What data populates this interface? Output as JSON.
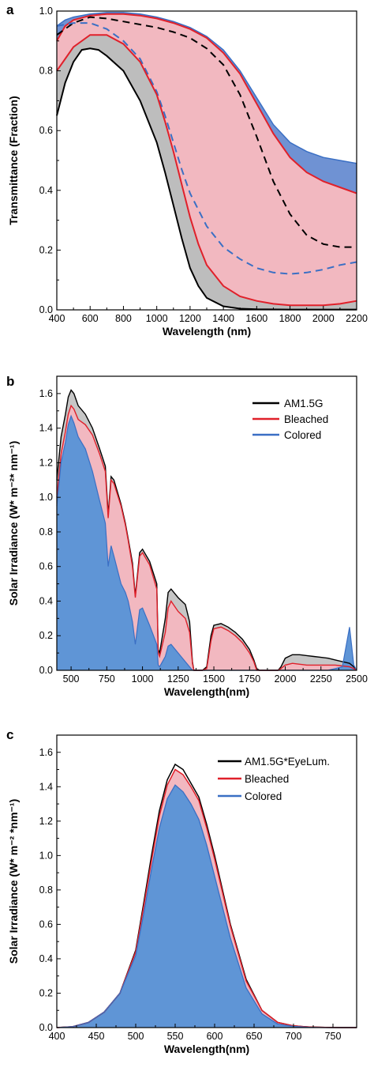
{
  "chart_data": [
    {
      "type": "line",
      "panel": "a",
      "xlabel": "Wavelength (nm)",
      "ylabel": "Transmittance (Fraction)",
      "xlim": [
        400,
        2200
      ],
      "ylim": [
        0,
        1.0
      ],
      "xticks": [
        400,
        600,
        800,
        1000,
        1200,
        1400,
        1600,
        1800,
        2000,
        2200
      ],
      "yticks": [
        0.0,
        0.2,
        0.4,
        0.6,
        0.8,
        1.0
      ],
      "colors": {
        "black": "#000000",
        "red": "#e0202a",
        "blue": "#3a6fc4",
        "pink_fill": "#f2b8c0",
        "gray_fill": "#bdbdbd",
        "blue_fill": "#6f92d3"
      },
      "series": [
        {
          "style": "solid-red-upper",
          "x": [
            400,
            450,
            500,
            600,
            700,
            800,
            900,
            1000,
            1100,
            1200,
            1300,
            1400,
            1500,
            1600,
            1700,
            1800,
            1900,
            2000,
            2100,
            2200
          ],
          "values": [
            0.9,
            0.95,
            0.97,
            0.985,
            0.99,
            0.99,
            0.985,
            0.975,
            0.96,
            0.94,
            0.91,
            0.86,
            0.79,
            0.69,
            0.59,
            0.51,
            0.46,
            0.43,
            0.41,
            0.39
          ]
        },
        {
          "style": "blue-upper-fill",
          "x": [
            400,
            450,
            500,
            600,
            700,
            800,
            900,
            1000,
            1100,
            1200,
            1300,
            1400,
            1500,
            1600,
            1700,
            1800,
            1900,
            2000,
            2100,
            2200
          ],
          "values": [
            0.95,
            0.97,
            0.98,
            0.99,
            0.995,
            0.995,
            0.99,
            0.98,
            0.965,
            0.945,
            0.915,
            0.87,
            0.8,
            0.71,
            0.62,
            0.56,
            0.53,
            0.51,
            0.5,
            0.49
          ]
        },
        {
          "style": "dashed-black",
          "x": [
            400,
            500,
            600,
            700,
            800,
            900,
            1000,
            1100,
            1200,
            1300,
            1400,
            1500,
            1600,
            1700,
            1800,
            1900,
            2000,
            2100,
            2200
          ],
          "values": [
            0.92,
            0.96,
            0.98,
            0.975,
            0.965,
            0.955,
            0.945,
            0.93,
            0.91,
            0.875,
            0.82,
            0.72,
            0.58,
            0.43,
            0.32,
            0.25,
            0.22,
            0.21,
            0.21
          ]
        },
        {
          "style": "dashed-blue",
          "x": [
            400,
            500,
            600,
            700,
            800,
            900,
            1000,
            1050,
            1100,
            1150,
            1200,
            1300,
            1400,
            1500,
            1600,
            1700,
            1800,
            1900,
            2000,
            2100,
            2200
          ],
          "values": [
            0.95,
            0.96,
            0.96,
            0.94,
            0.9,
            0.84,
            0.73,
            0.65,
            0.56,
            0.47,
            0.39,
            0.28,
            0.21,
            0.17,
            0.14,
            0.125,
            0.12,
            0.125,
            0.135,
            0.15,
            0.16
          ]
        },
        {
          "style": "solid-red-lower",
          "x": [
            400,
            450,
            500,
            600,
            700,
            800,
            900,
            1000,
            1050,
            1100,
            1150,
            1200,
            1250,
            1300,
            1400,
            1500,
            1600,
            1700,
            1800,
            1900,
            2000,
            2100,
            2200
          ],
          "values": [
            0.8,
            0.84,
            0.88,
            0.92,
            0.92,
            0.89,
            0.83,
            0.72,
            0.63,
            0.53,
            0.42,
            0.31,
            0.22,
            0.15,
            0.08,
            0.045,
            0.03,
            0.02,
            0.015,
            0.015,
            0.015,
            0.02,
            0.03
          ]
        },
        {
          "style": "solid-black",
          "x": [
            400,
            450,
            500,
            550,
            600,
            650,
            700,
            800,
            900,
            1000,
            1050,
            1100,
            1150,
            1200,
            1250,
            1300,
            1400,
            1500,
            1600,
            1800,
            2000,
            2200
          ],
          "values": [
            0.65,
            0.76,
            0.83,
            0.87,
            0.875,
            0.87,
            0.85,
            0.8,
            0.7,
            0.56,
            0.46,
            0.35,
            0.24,
            0.14,
            0.08,
            0.04,
            0.012,
            0.004,
            0.002,
            0.001,
            0.001,
            0.001
          ]
        }
      ]
    },
    {
      "type": "area",
      "panel": "b",
      "xlabel": "Wavelength(nm)",
      "ylabel": "Solar Irradiance (W* m⁻²* nm⁻¹)",
      "xlim": [
        400,
        2500
      ],
      "ylim": [
        0,
        1.7
      ],
      "xticks": [
        500,
        750,
        1000,
        1250,
        1500,
        1750,
        2000,
        2250,
        2500
      ],
      "yticks": [
        0.0,
        0.2,
        0.4,
        0.6,
        0.8,
        1.0,
        1.2,
        1.4,
        1.6
      ],
      "legend": {
        "position": "top-right",
        "entries": [
          "AM1.5G",
          "Bleached",
          "Colored"
        ]
      },
      "colors": {
        "AM1.5G": "#000000",
        "Bleached": "#e0202a",
        "Colored": "#3a6fc4",
        "fill_gray": "#c6c6c6",
        "fill_pink": "#f2b8c0",
        "fill_blue": "#5f95d6"
      },
      "x": [
        400,
        430,
        460,
        480,
        500,
        520,
        550,
        600,
        650,
        700,
        740,
        760,
        780,
        800,
        850,
        880,
        900,
        930,
        950,
        980,
        1000,
        1050,
        1100,
        1110,
        1120,
        1140,
        1160,
        1180,
        1200,
        1250,
        1300,
        1330,
        1350,
        1360,
        1400,
        1420,
        1450,
        1480,
        1500,
        1550,
        1600,
        1650,
        1700,
        1750,
        1780,
        1800,
        1820,
        1850,
        1900,
        1950,
        1970,
        2000,
        2050,
        2100,
        2150,
        2200,
        2250,
        2300,
        2350,
        2400,
        2450,
        2480,
        2500
      ],
      "series": [
        {
          "name": "AM1.5G",
          "values": [
            1.1,
            1.35,
            1.48,
            1.58,
            1.62,
            1.6,
            1.53,
            1.48,
            1.4,
            1.28,
            1.18,
            0.9,
            1.12,
            1.1,
            0.96,
            0.85,
            0.76,
            0.62,
            0.43,
            0.68,
            0.7,
            0.63,
            0.5,
            0.12,
            0.1,
            0.2,
            0.3,
            0.45,
            0.47,
            0.42,
            0.38,
            0.28,
            0.05,
            0.0,
            0.0,
            0.0,
            0.02,
            0.2,
            0.26,
            0.27,
            0.25,
            0.22,
            0.18,
            0.12,
            0.06,
            0.01,
            0.0,
            0.0,
            0.0,
            0.0,
            0.02,
            0.07,
            0.09,
            0.09,
            0.085,
            0.08,
            0.075,
            0.07,
            0.06,
            0.05,
            0.04,
            0.02,
            0.0
          ]
        },
        {
          "name": "Bleached",
          "values": [
            1.0,
            1.25,
            1.38,
            1.48,
            1.53,
            1.51,
            1.45,
            1.42,
            1.36,
            1.25,
            1.15,
            0.88,
            1.1,
            1.08,
            0.95,
            0.84,
            0.75,
            0.6,
            0.42,
            0.66,
            0.68,
            0.61,
            0.47,
            0.1,
            0.08,
            0.15,
            0.22,
            0.36,
            0.4,
            0.34,
            0.3,
            0.22,
            0.04,
            0.0,
            0.0,
            0.0,
            0.01,
            0.17,
            0.24,
            0.25,
            0.23,
            0.2,
            0.16,
            0.1,
            0.05,
            0.0,
            0.0,
            0.0,
            0.0,
            0.0,
            0.01,
            0.03,
            0.04,
            0.035,
            0.03,
            0.03,
            0.03,
            0.03,
            0.03,
            0.025,
            0.02,
            0.01,
            0.0
          ]
        },
        {
          "name": "Colored",
          "values": [
            0.95,
            1.2,
            1.32,
            1.42,
            1.47,
            1.43,
            1.35,
            1.28,
            1.15,
            0.98,
            0.85,
            0.6,
            0.72,
            0.66,
            0.5,
            0.45,
            0.4,
            0.28,
            0.15,
            0.35,
            0.36,
            0.26,
            0.15,
            0.03,
            0.02,
            0.05,
            0.08,
            0.14,
            0.15,
            0.1,
            0.05,
            0.02,
            0.0,
            0.0,
            0.0,
            0.0,
            0.0,
            0.0,
            0.0,
            0.0,
            0.0,
            0.0,
            0.0,
            0.0,
            0.0,
            0.0,
            0.0,
            0.0,
            0.0,
            0.0,
            0.0,
            0.0,
            0.0,
            0.0,
            0.0,
            0.0,
            0.0,
            0.0,
            0.01,
            0.02,
            0.25,
            0.03,
            0.0
          ]
        }
      ]
    },
    {
      "type": "area",
      "panel": "c",
      "xlabel": "Wavelength(nm)",
      "ylabel": "Solar Irradiance (W* m⁻² *nm⁻¹)",
      "xlim": [
        400,
        780
      ],
      "ylim": [
        0,
        1.7
      ],
      "xticks": [
        400,
        450,
        500,
        550,
        600,
        650,
        700,
        750
      ],
      "yticks": [
        0.0,
        0.2,
        0.4,
        0.6,
        0.8,
        1.0,
        1.2,
        1.4,
        1.6
      ],
      "legend": {
        "position": "top-right",
        "entries": [
          "AM1.5G*EyeLum.",
          "Bleached",
          "Colored"
        ]
      },
      "colors": {
        "AM1.5G*EyeLum.": "#000000",
        "Bleached": "#e0202a",
        "Colored": "#3a6fc4",
        "fill_pink": "#f2b8c0",
        "fill_blue": "#5f95d6"
      },
      "x": [
        400,
        420,
        440,
        460,
        480,
        500,
        510,
        520,
        530,
        540,
        550,
        560,
        570,
        580,
        590,
        600,
        620,
        640,
        660,
        680,
        700,
        720,
        740,
        760,
        780
      ],
      "series": [
        {
          "name": "AM1.5G*EyeLum.",
          "values": [
            0.0,
            0.005,
            0.03,
            0.09,
            0.2,
            0.45,
            0.72,
            1.0,
            1.26,
            1.44,
            1.53,
            1.5,
            1.42,
            1.34,
            1.18,
            1.0,
            0.6,
            0.28,
            0.1,
            0.03,
            0.01,
            0.003,
            0.001,
            0.0,
            0.0
          ]
        },
        {
          "name": "Bleached",
          "values": [
            0.0,
            0.005,
            0.03,
            0.09,
            0.2,
            0.44,
            0.7,
            0.97,
            1.23,
            1.41,
            1.5,
            1.47,
            1.4,
            1.32,
            1.16,
            0.98,
            0.59,
            0.27,
            0.1,
            0.03,
            0.01,
            0.003,
            0.001,
            0.0,
            0.0
          ]
        },
        {
          "name": "Colored",
          "values": [
            0.0,
            0.005,
            0.03,
            0.09,
            0.2,
            0.42,
            0.66,
            0.92,
            1.16,
            1.33,
            1.41,
            1.37,
            1.3,
            1.21,
            1.06,
            0.88,
            0.52,
            0.23,
            0.08,
            0.02,
            0.007,
            0.002,
            0.0,
            0.0,
            0.0
          ]
        }
      ]
    }
  ]
}
